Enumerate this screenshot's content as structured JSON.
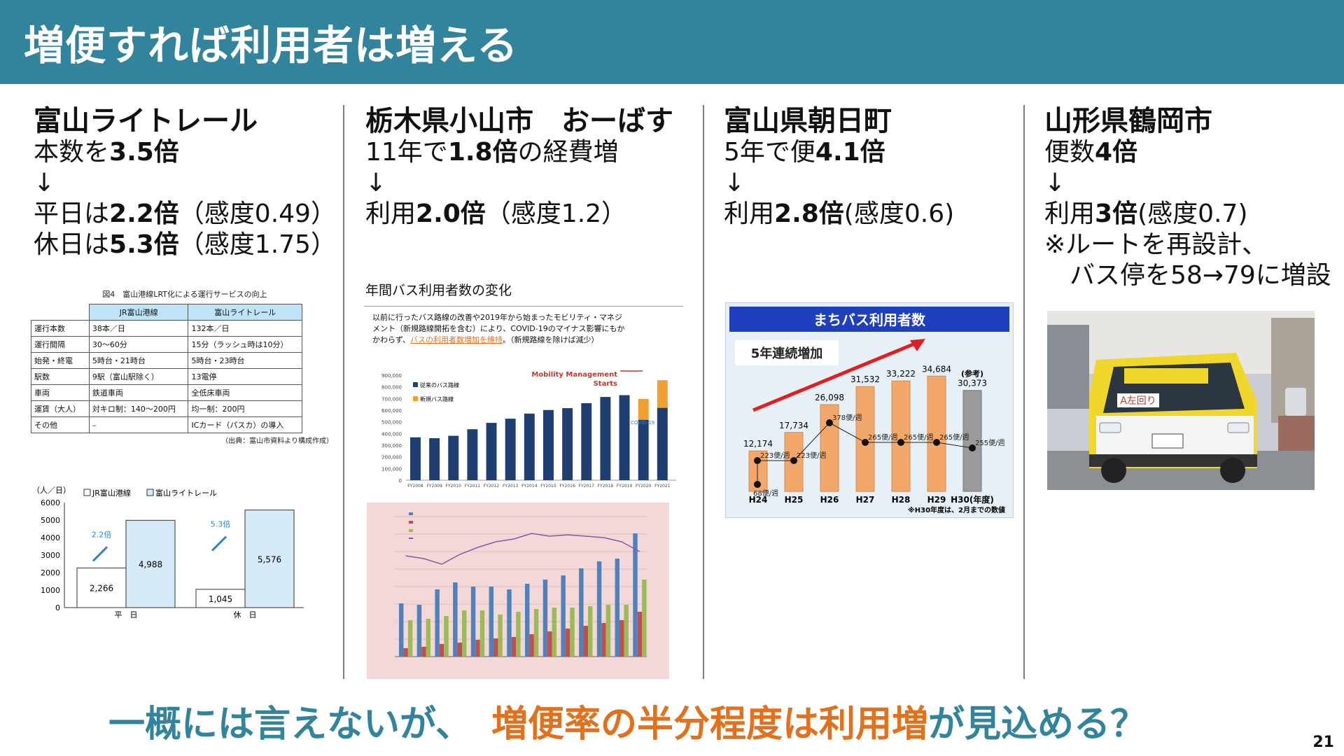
{
  "title": "増便すれば利用者は増える",
  "columns": [
    {
      "heading": "富山ライトレール",
      "l1a": "本数を",
      "l1b": "3.5倍",
      "arrow": "↓",
      "l2a": "平日は",
      "l2b": "2.2倍",
      "l2c": "（感度0.49）",
      "l3a": "休日は",
      "l3b": "5.3倍",
      "l3c": "（感度1.75）"
    },
    {
      "heading": "栃木県小山市　おーばす",
      "l1a": "11年で",
      "l1b": "1.8倍",
      "l1c": "の経費増",
      "arrow": "↓",
      "l2a": "利用",
      "l2b": "2.0倍",
      "l2c": "（感度1.2）"
    },
    {
      "heading": "富山県朝日町",
      "l1a": "5年で便",
      "l1b": "4.1倍",
      "arrow": "↓",
      "l2a": "利用",
      "l2b": "2.8倍",
      "l2c": "(感度0.6)"
    },
    {
      "heading": "山形県鶴岡市",
      "l1a": "便数",
      "l1b": "4倍",
      "arrow": "↓",
      "l2a": "利用",
      "l2b": "3倍",
      "l2c": "(感度0.7)",
      "l3": "※ルートを再設計、",
      "l4": "バス停を58→79に増設"
    }
  ],
  "fig1": {
    "caption": "図4　富山港線LRT化による運行サービスの向上",
    "header": [
      "",
      "JR富山港線",
      "富山ライトレール"
    ],
    "rows": [
      [
        "運行本数",
        "38本／日",
        "132本／日"
      ],
      [
        "運行間隔",
        "30〜60分",
        "15分（ラッシュ時は10分）"
      ],
      [
        "始発・終電",
        "5時台・21時台",
        "5時台・23時台"
      ],
      [
        "駅数",
        "9駅（富山駅除く）",
        "13電停"
      ],
      [
        "車両",
        "鉄道車両",
        "全低床車両"
      ],
      [
        "運賃（大人）",
        "対キロ制：140〜200円",
        "均一制：200円"
      ],
      [
        "その他",
        "–",
        "ICカード（パスカ）の導入"
      ]
    ],
    "source": "（出典：富山市資料より構成作成）"
  },
  "chart1": {
    "unit": "（人／日）",
    "legend": [
      "JR富山港線",
      "富山ライトレール"
    ],
    "yticks": [
      "6000",
      "5000",
      "4000",
      "3000",
      "2000",
      "1000",
      "0"
    ],
    "groups": [
      {
        "label": "平　日",
        "jr": 2266,
        "lr": 4988,
        "jr_label": "2,266",
        "lr_label": "4,988",
        "ratio": "2.2倍"
      },
      {
        "label": "休　日",
        "jr": 1045,
        "lr": 5576,
        "jr_label": "1,045",
        "lr_label": "5,576",
        "ratio": "5.3倍"
      }
    ]
  },
  "fig2": {
    "title": "年間バス利用者数の変化",
    "note1": "以前に行ったバス路線の改善や2019年から始まったモビリティ・マネジ",
    "note2": "メント（新規路線開拓を含む）により、COVID-19のマイナス影響にもか",
    "note3a": "かわらず、",
    "note3b": "バスの利用者数増加を維持",
    "note3c": "。（新規路線を除けば減少）",
    "mm_label1": "Mobility Management",
    "mm_label2": "Starts",
    "covid": "COVID-19",
    "legend": [
      "従来のバス路線",
      "新規バス路線"
    ],
    "yticks": [
      "900,000",
      "800,000",
      "700,000",
      "600,000",
      "500,000",
      "400,000",
      "300,000",
      "200,000",
      "100,000",
      "0"
    ],
    "years": [
      "FY2008",
      "FY2009",
      "FY2010",
      "FY2011",
      "FY2012",
      "FY2013",
      "FY2014",
      "FY2015",
      "FY2016",
      "FY2017",
      "FY2018",
      "FY2019",
      "FY2020",
      "FY2021"
    ],
    "values": [
      367346,
      360025,
      380783,
      436802,
      491501,
      527409,
      570987,
      601511,
      617692,
      660039,
      713403,
      728807,
      518027,
      620292
    ],
    "new_values": [
      0,
      0,
      0,
      0,
      0,
      0,
      0,
      0,
      0,
      0,
      0,
      0,
      178005,
      236977
    ]
  },
  "chart3": {
    "title": "まちバス利用者数",
    "badge": "5年連続増加",
    "categories": [
      "H24",
      "H25",
      "H26",
      "H27",
      "H28",
      "H29",
      "H30(年度)"
    ],
    "values": [
      12174,
      17734,
      26098,
      31532,
      33222,
      34684,
      30373
    ],
    "value_labels": [
      "12,174",
      "17,734",
      "26,098",
      "31,532",
      "33,222",
      "34,684",
      "30,373"
    ],
    "ref_label": "(参考)",
    "freq_labels": [
      "68便/週",
      "223便/週",
      "223便/週",
      "378便/週",
      "265便/週",
      "265便/週",
      "265便/週",
      "255便/週"
    ],
    "footnote": "※H30年度は、2月までの数値"
  },
  "photo": {
    "route_sign": "A左回り"
  },
  "footer": {
    "part1": "一概には言えないが、",
    "part2": "増便率の半分程度は利用増",
    "part3": "が見込める？"
  },
  "page_number": "21",
  "colors": {
    "title_bg": "#31849b",
    "teal": "#31849b",
    "orange": "#e2711d"
  }
}
